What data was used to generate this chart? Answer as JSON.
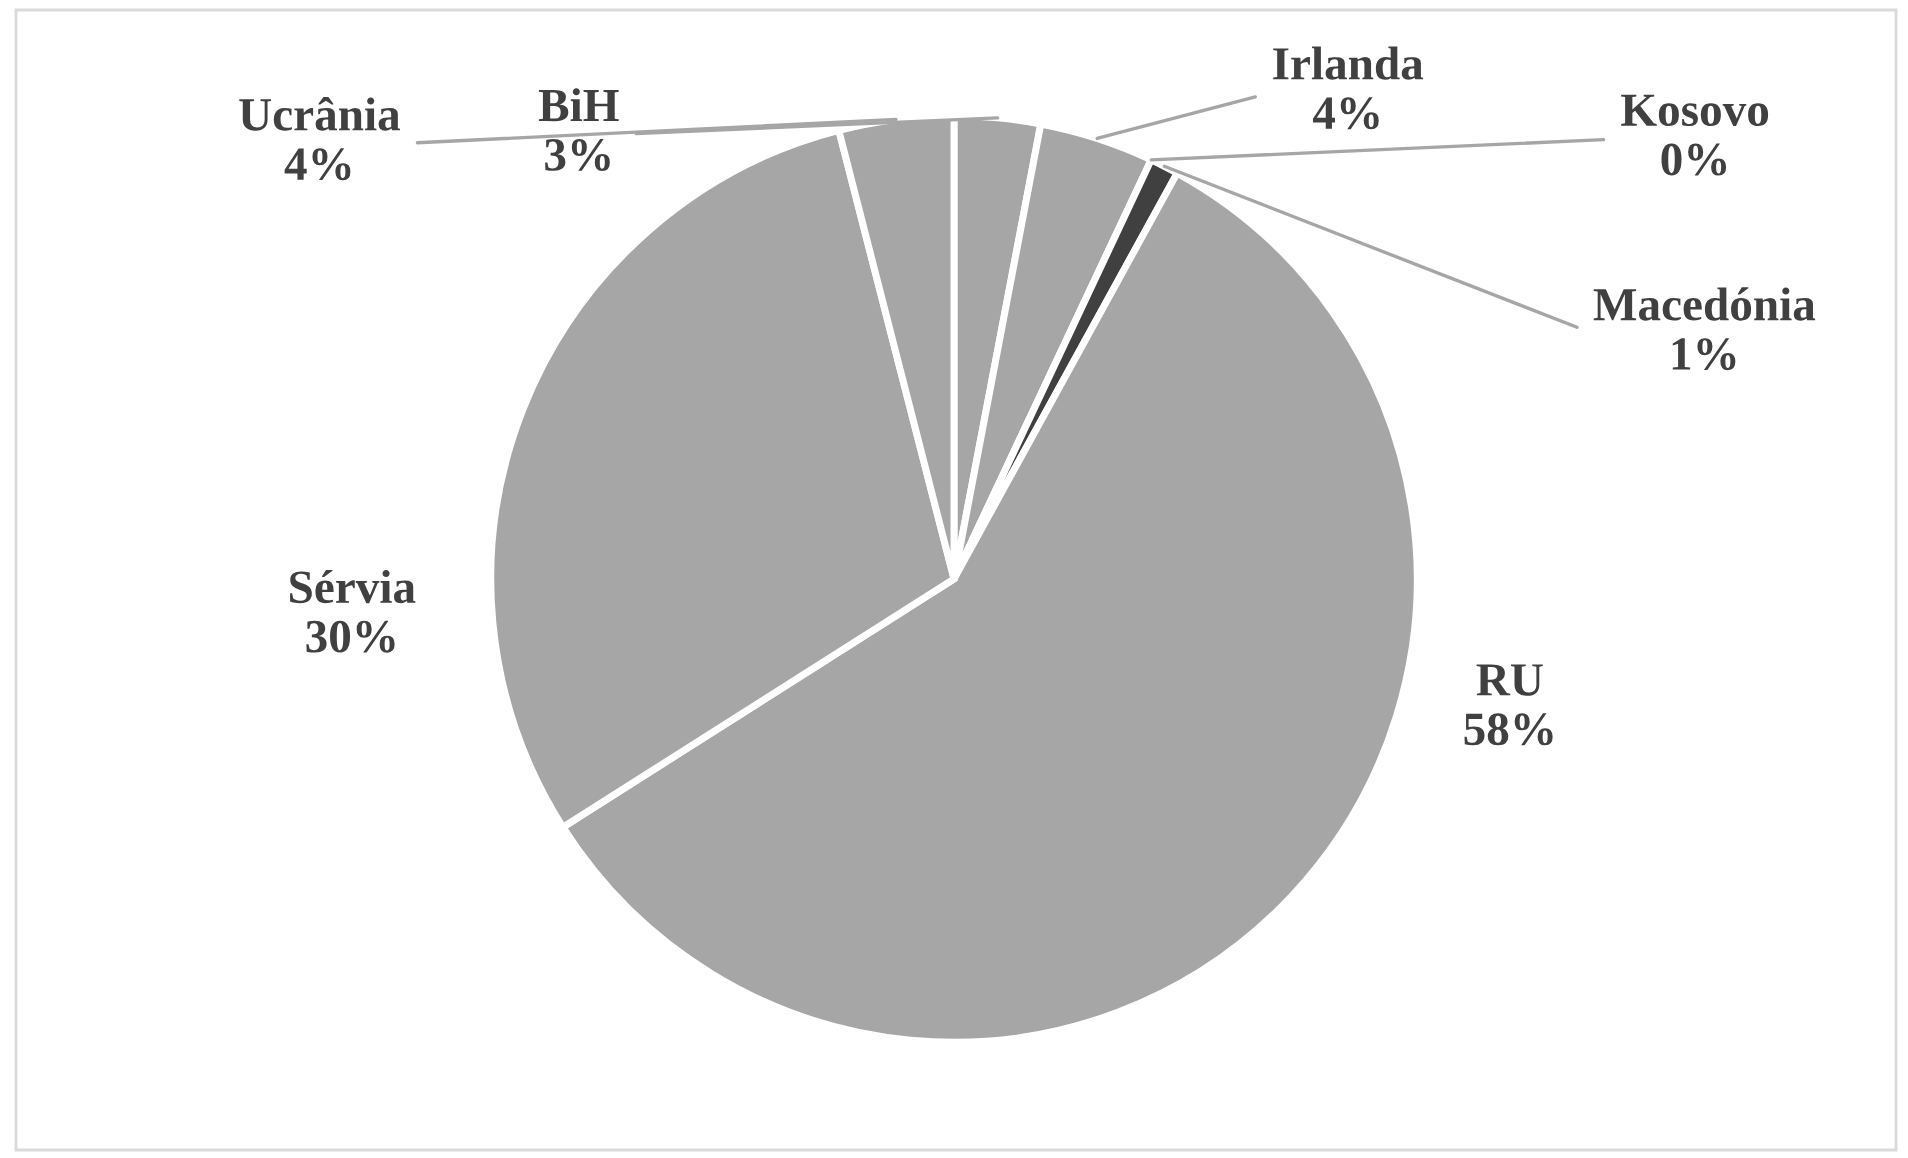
{
  "chart_data": {
    "type": "pie",
    "categories": [
      "BiH",
      "Irlanda",
      "Kosovo",
      "Macedónia",
      "RU",
      "Sérvia",
      "Ucrânia"
    ],
    "values": [
      3,
      4,
      0,
      1,
      58,
      30,
      4
    ],
    "value_labels": [
      "3%",
      "4%",
      "0%",
      "1%",
      "58%",
      "30%",
      "4%"
    ],
    "colors": [
      "#a6a6a6",
      "#a6a6a6",
      "#a6a6a6",
      "#404040",
      "#a6a6a6",
      "#a6a6a6",
      "#a6a6a6"
    ],
    "legend": false
  }
}
